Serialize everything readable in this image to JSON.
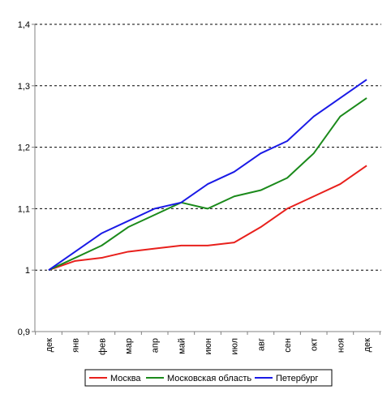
{
  "chart_data": {
    "type": "line",
    "categories": [
      "дек",
      "янв",
      "фев",
      "мар",
      "апр",
      "май",
      "июн",
      "июл",
      "авг",
      "сен",
      "окт",
      "ноя",
      "дек"
    ],
    "ylim": [
      0.9,
      1.4
    ],
    "yticks": [
      "0,9",
      "1",
      "1,1",
      "1,2",
      "1,3",
      "1,4"
    ],
    "ytick_values": [
      0.9,
      1.0,
      1.1,
      1.2,
      1.3,
      1.4
    ],
    "grid": "horizontal dashed",
    "legend_position": "bottom",
    "series": [
      {
        "name": "Москва",
        "color": "#e8201c",
        "values": [
          1.0,
          1.015,
          1.02,
          1.03,
          1.035,
          1.04,
          1.04,
          1.045,
          1.07,
          1.1,
          1.12,
          1.14,
          1.17
        ]
      },
      {
        "name": "Московская область",
        "color": "#1b8a1b",
        "values": [
          1.0,
          1.02,
          1.04,
          1.07,
          1.09,
          1.11,
          1.1,
          1.12,
          1.13,
          1.15,
          1.19,
          1.25,
          1.28
        ]
      },
      {
        "name": "Петербург",
        "color": "#1a1ae6",
        "values": [
          1.0,
          1.03,
          1.06,
          1.08,
          1.1,
          1.11,
          1.14,
          1.16,
          1.19,
          1.21,
          1.25,
          1.28,
          1.31
        ]
      }
    ]
  }
}
